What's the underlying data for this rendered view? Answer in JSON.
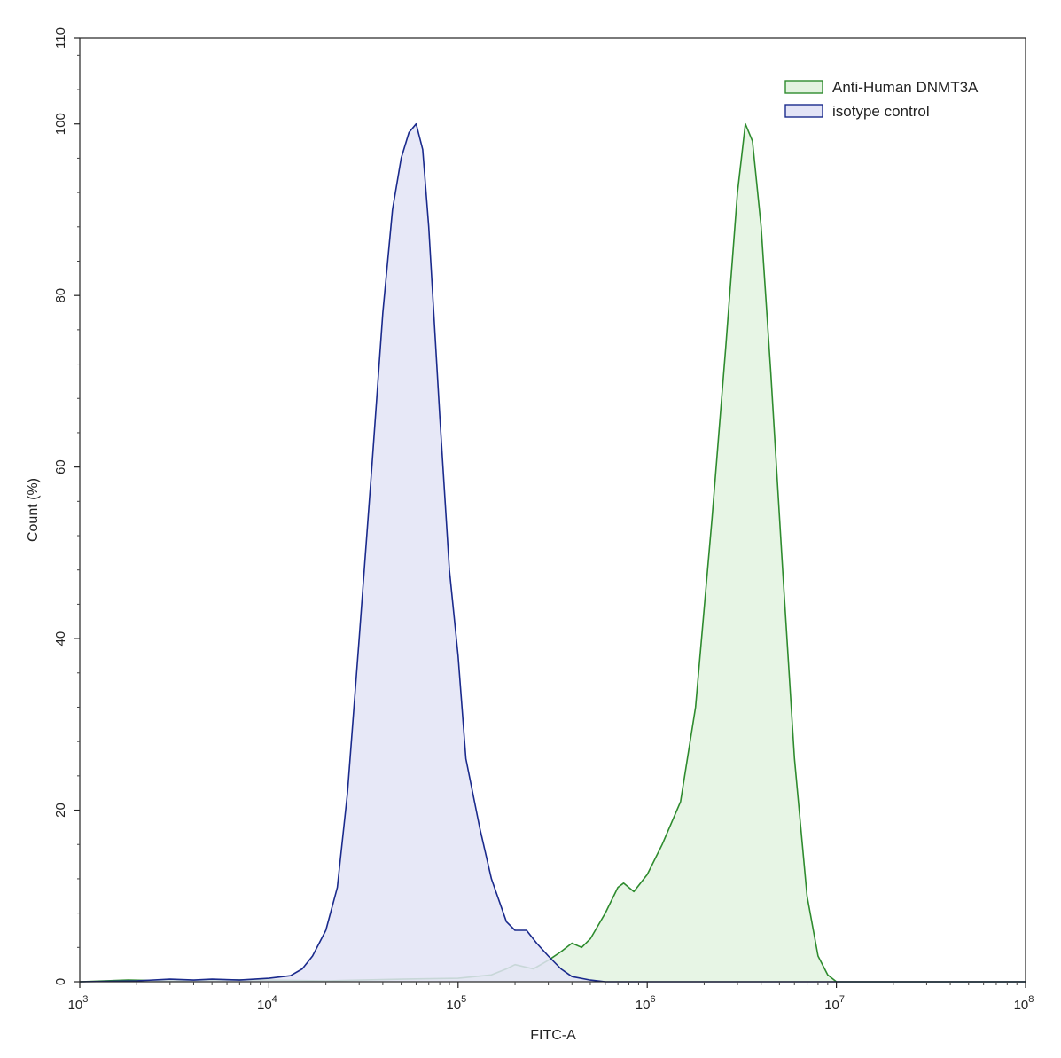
{
  "chart_data": {
    "type": "area",
    "xlabel": "FITC-A",
    "ylabel": "Count (%)",
    "xscale": "log",
    "xlim": [
      1000,
      100000000
    ],
    "ylim": [
      0,
      110
    ],
    "x_ticks": [
      {
        "base": "10",
        "exp": "3",
        "value": 1000
      },
      {
        "base": "10",
        "exp": "4",
        "value": 10000
      },
      {
        "base": "10",
        "exp": "5",
        "value": 100000
      },
      {
        "base": "10",
        "exp": "6",
        "value": 1000000
      },
      {
        "base": "10",
        "exp": "7",
        "value": 10000000
      },
      {
        "base": "10",
        "exp": "8",
        "value": 100000000
      }
    ],
    "y_ticks": [
      "0",
      "20",
      "40",
      "60",
      "80",
      "100",
      "110"
    ],
    "legend_position": "top-right",
    "grid": false,
    "series": [
      {
        "name": "Anti-Human DNMT3A",
        "color": "#2e8b2e",
        "fill": "#e3f3e0",
        "x": [
          1000,
          1800,
          3000,
          5000,
          10000,
          20000,
          50000,
          100000,
          150000,
          180000,
          200000,
          250000,
          300000,
          350000,
          400000,
          450000,
          500000,
          600000,
          700000,
          750000,
          850000,
          1000000,
          1200000,
          1500000,
          1800000,
          2200000,
          2600000,
          3000000,
          3300000,
          3600000,
          4000000,
          4500000,
          5200000,
          6000000,
          7000000,
          8000000,
          9000000,
          10000000,
          100000000
        ],
        "y": [
          0,
          0.2,
          0.1,
          0.2,
          0.2,
          0.1,
          0.3,
          0.4,
          0.8,
          1.5,
          2,
          1.5,
          2.5,
          3.5,
          4.5,
          4,
          5,
          8,
          11,
          11.5,
          10.5,
          12.5,
          16,
          21,
          32,
          54,
          74,
          92,
          100,
          98,
          88,
          71,
          48,
          26,
          10,
          3,
          0.8,
          0,
          0
        ]
      },
      {
        "name": "isotype control",
        "color": "#1a2a8c",
        "fill": "#e3e4f6",
        "x": [
          1000,
          2000,
          3000,
          4000,
          5000,
          7000,
          10000,
          13000,
          15000,
          17000,
          20000,
          23000,
          26000,
          30000,
          35000,
          40000,
          45000,
          50000,
          55000,
          60000,
          65000,
          70000,
          80000,
          90000,
          100000,
          110000,
          130000,
          150000,
          180000,
          200000,
          230000,
          260000,
          300000,
          350000,
          400000,
          500000,
          600000,
          100000000
        ],
        "y": [
          0,
          0.1,
          0.3,
          0.2,
          0.3,
          0.2,
          0.4,
          0.7,
          1.5,
          3,
          6,
          11,
          22,
          40,
          60,
          78,
          90,
          96,
          99,
          100,
          97,
          88,
          66,
          48,
          38,
          26,
          18,
          12,
          7,
          6,
          6,
          4.5,
          3,
          1.5,
          0.6,
          0.2,
          0,
          0
        ]
      }
    ]
  }
}
